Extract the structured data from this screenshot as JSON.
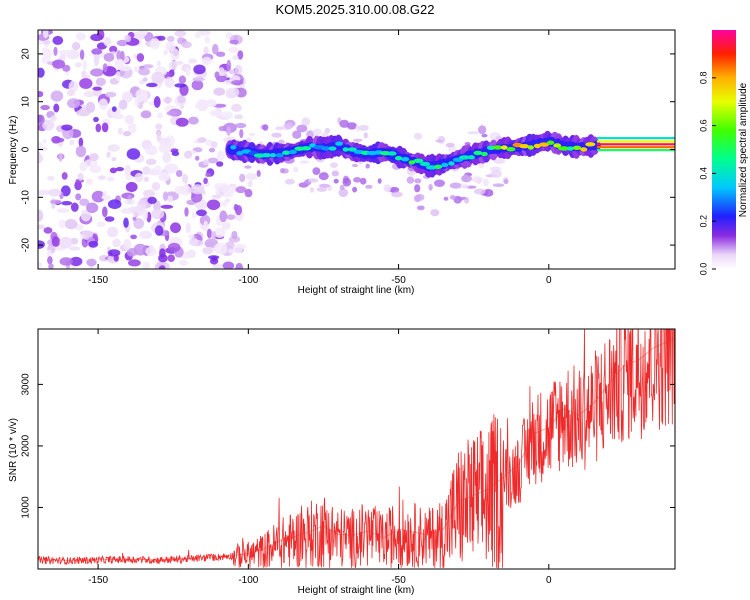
{
  "title": "KOM5.2025.310.00.08.G22",
  "chart_data": [
    {
      "type": "heatmap",
      "title": "KOM5.2025.310.00.08.G22",
      "xlabel": "Height of straight line (km)",
      "ylabel": "Frequency (Hz)",
      "xlim": [
        -170,
        42
      ],
      "ylim": [
        -25,
        25
      ],
      "xticks": [
        -150,
        -100,
        -50,
        0
      ],
      "yticks": [
        -20,
        -10,
        0,
        10,
        20
      ],
      "ridge": {
        "x": [
          -106,
          -100,
          -95,
          -90,
          -85,
          -80,
          -75,
          -70,
          -65,
          -60,
          -55,
          -50,
          -45,
          -40,
          -35,
          -30,
          -25,
          -20,
          -15,
          -10,
          -5,
          0,
          5,
          10,
          15,
          20,
          30,
          42
        ],
        "freq": [
          0.0,
          -0.5,
          -1.0,
          -0.8,
          -0.3,
          0.5,
          0.3,
          0.8,
          -0.5,
          -1.0,
          -0.5,
          -1.5,
          -2.5,
          -3.5,
          -3.0,
          -2.0,
          -1.0,
          -0.3,
          0.3,
          0.5,
          1.0,
          1.8,
          0.8,
          0.5,
          0.8,
          0.8,
          0.8,
          0.8
        ],
        "amplitude": [
          0.3,
          0.3,
          0.4,
          0.4,
          0.4,
          0.45,
          0.4,
          0.45,
          0.4,
          0.45,
          0.45,
          0.5,
          0.5,
          0.5,
          0.45,
          0.45,
          0.5,
          0.55,
          0.65,
          0.75,
          0.8,
          0.75,
          0.7,
          0.6,
          0.9,
          0.95,
          0.95,
          0.95
        ]
      },
      "colorbar": {
        "label": "Normalized spectral amplitude",
        "ticks": [
          "0.0",
          "0.2",
          "0.4",
          "0.6",
          "0.8"
        ],
        "range": [
          0,
          1
        ]
      }
    },
    {
      "type": "line",
      "xlabel": "Height of straight line (km)",
      "ylabel": "SNR (10 * v/v)",
      "xlim": [
        -170,
        42
      ],
      "ylim": [
        0,
        3900
      ],
      "xticks": [
        -150,
        -100,
        -50,
        0
      ],
      "yticks": [
        1000,
        2000,
        3000
      ],
      "series": [
        {
          "name": "SNR",
          "color": "#ee2a2a",
          "x": [
            -170,
            -160,
            -150,
            -140,
            -130,
            -120,
            -110,
            -100,
            -95,
            -90,
            -85,
            -80,
            -75,
            -70,
            -65,
            -60,
            -55,
            -50,
            -45,
            -40,
            -35,
            -30,
            -25,
            -20,
            -15,
            -10,
            -5,
            0,
            5,
            10,
            15,
            20,
            25,
            30,
            35,
            40,
            42
          ],
          "values": [
            150,
            140,
            150,
            160,
            150,
            170,
            200,
            250,
            320,
            450,
            520,
            600,
            700,
            560,
            550,
            620,
            500,
            650,
            600,
            550,
            650,
            1100,
            1200,
            1300,
            1500,
            1700,
            2200,
            2300,
            2600,
            2500,
            2700,
            3000,
            3300,
            3400,
            3600,
            3700,
            3750
          ]
        }
      ]
    }
  ]
}
